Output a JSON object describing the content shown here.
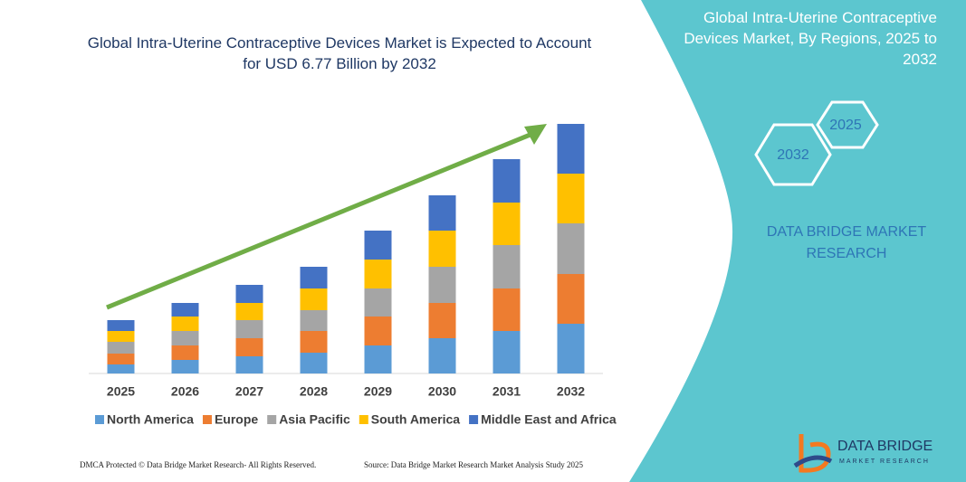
{
  "chart_data": {
    "type": "stacked-bar",
    "title": "Global Intra-Uterine Contraceptive Devices Market is Expected to Account for USD 6.77 Billion by 2032",
    "categories": [
      "2025",
      "2026",
      "2027",
      "2028",
      "2029",
      "2030",
      "2031",
      "2032"
    ],
    "series": [
      {
        "name": "North America",
        "color": "#5b9bd5",
        "values": [
          10,
          15,
          19,
          23,
          31,
          39,
          47,
          55
        ]
      },
      {
        "name": "Europe",
        "color": "#ed7d31",
        "values": [
          12,
          16,
          20,
          24,
          32,
          39,
          47,
          55
        ]
      },
      {
        "name": "Asia Pacific",
        "color": "#a5a5a5",
        "values": [
          13,
          16,
          20,
          23,
          31,
          40,
          48,
          56
        ]
      },
      {
        "name": "South America",
        "color": "#ffc000",
        "values": [
          12,
          16,
          19,
          24,
          32,
          40,
          47,
          55
        ]
      },
      {
        "name": "Middle East and Africa",
        "color": "#4472c4",
        "values": [
          12,
          15,
          20,
          24,
          32,
          39,
          48,
          55
        ]
      }
    ],
    "ylim": [
      0,
      300
    ],
    "legend": "bottom"
  },
  "panel": {
    "title": "Global Intra-Uterine Contraceptive Devices Market, By Regions, 2025 to 2032",
    "hex_start": "2025",
    "hex_end": "2032",
    "brand": "DATA BRIDGE MARKET RESEARCH",
    "logo_title": "DATA BRIDGE",
    "logo_subtitle": "MARKET RESEARCH"
  },
  "footer": {
    "left": "DMCA Protected © Data Bridge Market Research- All Rights Reserved.",
    "right": "Source: Data Bridge Market Research Market Analysis Study 2025"
  }
}
